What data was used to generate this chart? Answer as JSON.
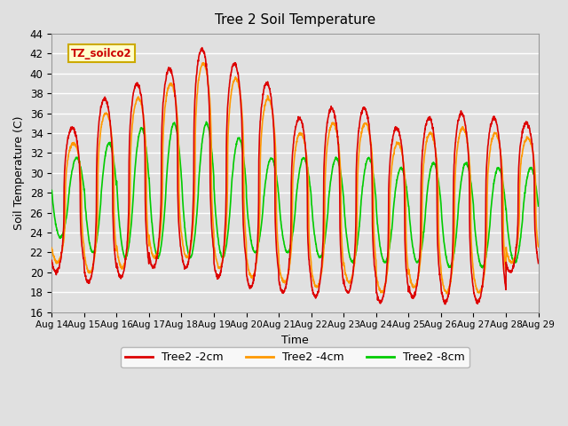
{
  "title": "Tree 2 Soil Temperature",
  "xlabel": "Time",
  "ylabel": "Soil Temperature (C)",
  "ylim": [
    16,
    44
  ],
  "yticks": [
    16,
    18,
    20,
    22,
    24,
    26,
    28,
    30,
    32,
    34,
    36,
    38,
    40,
    42,
    44
  ],
  "bg_color": "#e0e0e0",
  "legend_label": "TZ_soilco2",
  "legend_box_facecolor": "#ffffcc",
  "legend_box_edgecolor": "#ccaa00",
  "series_colors": [
    "#dd0000",
    "#ff9900",
    "#00cc00"
  ],
  "series_labels": [
    "Tree2 -2cm",
    "Tree2 -4cm",
    "Tree2 -8cm"
  ],
  "line_width": 1.2,
  "num_days": 15,
  "xtick_labels": [
    "Aug 14",
    "Aug 15",
    "Aug 16",
    "Aug 17",
    "Aug 18",
    "Aug 19",
    "Aug 20",
    "Aug 21",
    "Aug 22",
    "Aug 23",
    "Aug 24",
    "Aug 25",
    "Aug 26",
    "Aug 27",
    "Aug 28",
    "Aug 29"
  ],
  "figsize": [
    6.4,
    4.8
  ],
  "dpi": 100
}
